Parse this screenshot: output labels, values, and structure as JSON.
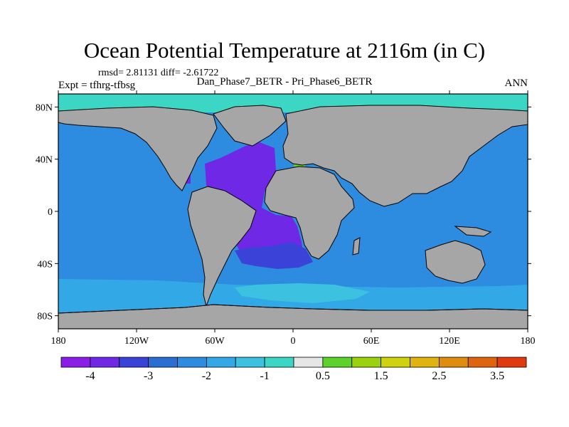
{
  "title": "Ocean Potential Temperature at 2116m (in C)",
  "stats": "rmsd= 2.81131 diff= -2.61722",
  "subtitle": "Dan_Phase7_BETR - Pri_Phase6_BETR",
  "expt": "Expt = tfhrg-tfbsg",
  "season": "ANN",
  "axes": {
    "lat_labels": [
      "80N",
      "40N",
      "0",
      "40S",
      "80S"
    ],
    "lat_values": [
      80,
      40,
      0,
      -40,
      -80
    ],
    "lon_labels": [
      "180",
      "120W",
      "60W",
      "0",
      "60E",
      "120E",
      "180"
    ],
    "lon_values": [
      -180,
      -120,
      -60,
      0,
      60,
      120,
      180
    ]
  },
  "colorbar": {
    "colors": [
      "#8a1ee6",
      "#6e28e6",
      "#3a42d8",
      "#2a6ed2",
      "#2e8ce0",
      "#32a8e6",
      "#3cc2e0",
      "#3cd6c4",
      "#e6e6e6",
      "#5cd22a",
      "#9ad20e",
      "#cfd20e",
      "#e0b40e",
      "#e08c0e",
      "#e0640e",
      "#e03a0e"
    ],
    "labels": [
      "-4",
      "-3",
      "-2",
      "-1",
      "0.5",
      "1.5",
      "2.5",
      "3.5"
    ]
  },
  "colors": {
    "land": "#a6a6a6",
    "ocean_base": "#2e8ce0",
    "arctic": "#3cd6c4",
    "atlantic": "#6e28e6",
    "south_atlantic": "#3a42d8",
    "southern_band": "#32a8e6",
    "southern_light": "#3cc2e0",
    "mediterranean": "#5cd22a"
  }
}
